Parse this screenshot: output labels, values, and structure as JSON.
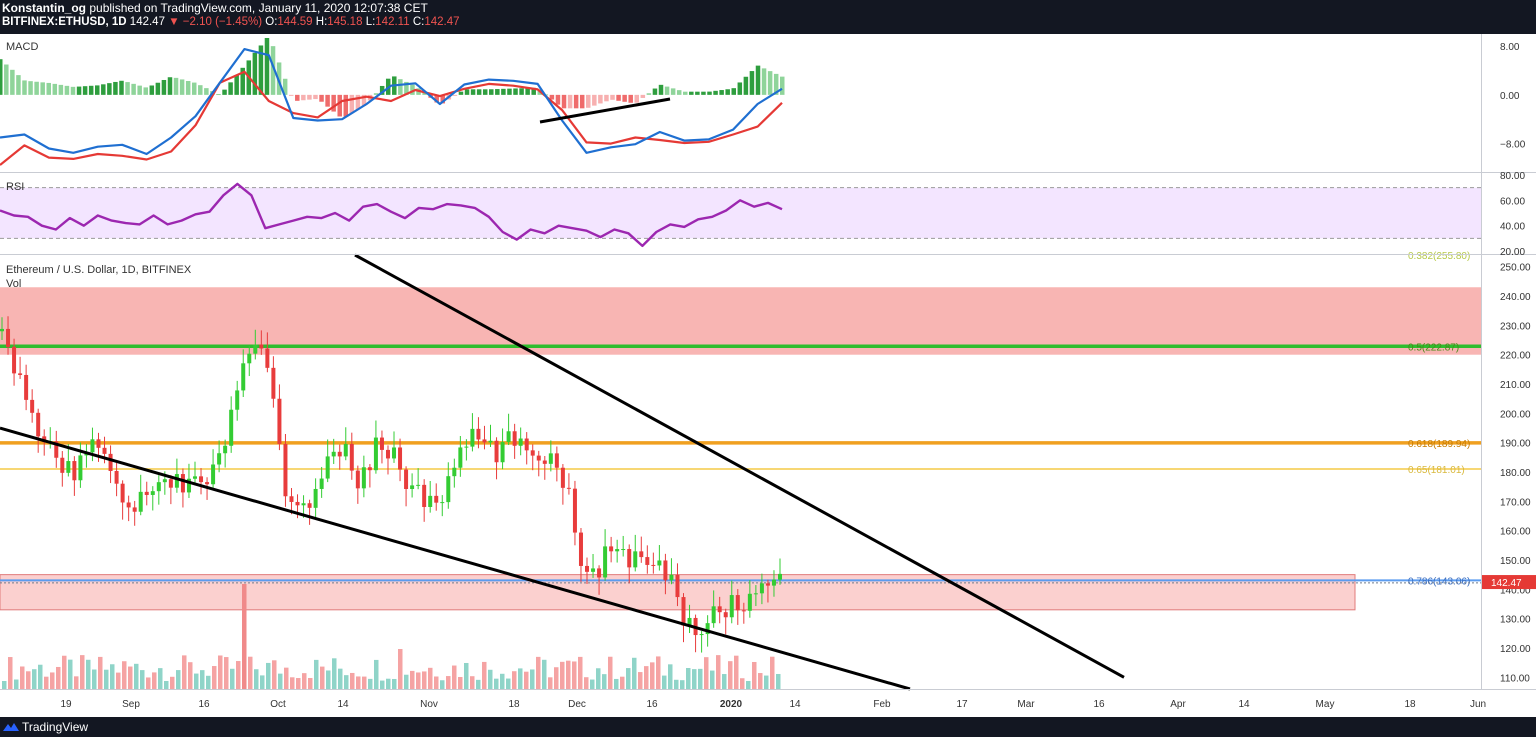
{
  "header": {
    "author": "Konstantin_og",
    "published": "published on TradingView.com, January 11, 2020 12:07:38 CET",
    "symbol": "BITFINEX:ETHUSD, 1D",
    "last": "142.47",
    "change": "−2.10 (−1.45%)",
    "open_label": "O:",
    "open": "144.59",
    "high_label": "H:",
    "high": "145.18",
    "low_label": "L:",
    "low": "142.11",
    "close_label": "C:",
    "close": "142.47"
  },
  "footer": {
    "brand": "TradingView"
  },
  "colors": {
    "up": "#26a69a",
    "candle_up": "#2ecc2e",
    "candle_down": "#ef3b3b",
    "macd_line": "#2962ff",
    "signal_line": "#e53935",
    "rsi_line": "#9c27b0",
    "rsi_band": "#f3e5ff",
    "red_zone": "#f8b7b5",
    "green_line": "#2ebd2e",
    "orange_line": "#f0a020",
    "yellow_line": "#f7d774",
    "blue_line": "#5b9cf0",
    "price_tag": "#e53935"
  },
  "chart_data": [
    {
      "type": "bar",
      "title": "MACD",
      "yaxis_labels": [
        "8.00",
        "0.00",
        "−8.00"
      ],
      "ylim": [
        -12,
        9
      ],
      "histogram_note": "green/red histogram with MACD and signal lines",
      "macd": [
        -7,
        -6.5,
        -8.8,
        -9.5,
        -8.5,
        -8.2,
        -9.7,
        -7,
        -3.5,
        2,
        7.5,
        6.5,
        -3.8,
        -4.2,
        -4,
        -1.5,
        1.5,
        1.9,
        -1.5,
        1.7,
        2.5,
        2.3,
        1.8,
        -4.2,
        -9.5,
        -8.6,
        -8.1,
        -6.1,
        -7.5,
        -7.3,
        -5.7,
        -1.5,
        1
      ],
      "signal": [
        -11.5,
        -8.3,
        -10.3,
        -10.5,
        -9.7,
        -10,
        -10.6,
        -9.3,
        -5,
        2,
        3.8,
        -1,
        -3,
        -3.7,
        -1,
        -0.3,
        -1,
        0.8,
        -0.2,
        1,
        1.8,
        1.5,
        0.9,
        -2.5,
        -7.8,
        -8,
        -7,
        -7.4,
        -7.9,
        -7.7,
        -6.5,
        -5.2,
        -1.3
      ]
    },
    {
      "type": "line",
      "title": "RSI",
      "yaxis_labels": [
        "80.00",
        "60.00",
        "40.00",
        "20.00"
      ],
      "ylim": [
        20,
        80
      ],
      "band": [
        30,
        70
      ],
      "values": [
        52,
        48,
        47,
        40,
        37,
        46,
        40,
        48,
        44,
        42,
        41,
        48,
        41,
        44,
        49,
        51,
        64,
        73,
        64,
        38,
        41,
        44,
        47,
        46,
        50,
        44,
        55,
        57,
        51,
        46,
        54,
        53,
        57,
        56,
        54,
        47,
        35,
        29,
        37,
        34,
        40,
        38,
        36,
        31,
        37,
        34,
        24,
        35,
        41,
        39,
        45,
        47,
        52,
        60,
        55,
        58,
        53
      ]
    },
    {
      "type": "line",
      "title": "Ethereum / U.S. Dollar, 1D, BITFINEX",
      "subtitle": "Vol",
      "ylim": [
        106,
        254
      ],
      "yaxis_labels": [
        "250.00",
        "240.00",
        "230.00",
        "220.00",
        "210.00",
        "200.00",
        "190.00",
        "180.00",
        "170.00",
        "160.00",
        "150.00",
        "140.00",
        "130.00",
        "120.00",
        "110.00"
      ],
      "x_labels": [
        "19",
        "Sep",
        "16",
        "Oct",
        "14",
        "Nov",
        "18",
        "Dec",
        "16",
        "2020",
        "14",
        "Feb",
        "17",
        "Mar",
        "16",
        "Apr",
        "14",
        "May",
        "18",
        "Jun"
      ],
      "fib_levels": [
        {
          "label": "0.5(222.87)",
          "price": 222.87,
          "color": "#2ebd2e"
        },
        {
          "label": "0.618(189.94)",
          "price": 189.94,
          "color": "#f0a020"
        },
        {
          "label": "0.65(181.01)",
          "price": 181.01,
          "color": "#f7d774"
        },
        {
          "label": "0.786(143.06)",
          "price": 143.06,
          "color": "#5b9cf0"
        },
        {
          "label": "0.382(255.80)",
          "price": 255.8,
          "color": "#b7c94a"
        }
      ],
      "zones": [
        {
          "from": 220,
          "to": 243
        },
        {
          "from": 133,
          "to": 145
        }
      ],
      "last_price_tag": "142.47",
      "last_price": 142.47,
      "price_path": [
        228,
        215,
        205,
        196,
        189,
        182,
        179,
        187,
        192,
        183,
        175,
        168,
        170,
        178,
        179,
        176,
        175,
        178,
        180,
        192,
        209,
        222,
        220,
        205,
        172,
        170,
        171,
        176,
        185,
        188,
        176,
        183,
        190,
        187,
        180,
        173,
        170,
        168,
        178,
        189,
        192,
        188,
        187,
        190,
        191,
        188,
        186,
        184,
        174,
        152,
        144,
        150,
        155,
        151,
        149,
        147,
        147,
        140,
        129,
        128,
        130,
        133,
        136,
        134,
        140,
        145,
        142.47
      ],
      "trendlines": [
        {
          "from": [
            "Aug 8",
            195
          ],
          "to": [
            "Feb 3",
            106
          ]
        },
        {
          "from": [
            "Oct 22",
            254
          ],
          "to": [
            "Mar 23",
            110
          ]
        }
      ]
    }
  ]
}
